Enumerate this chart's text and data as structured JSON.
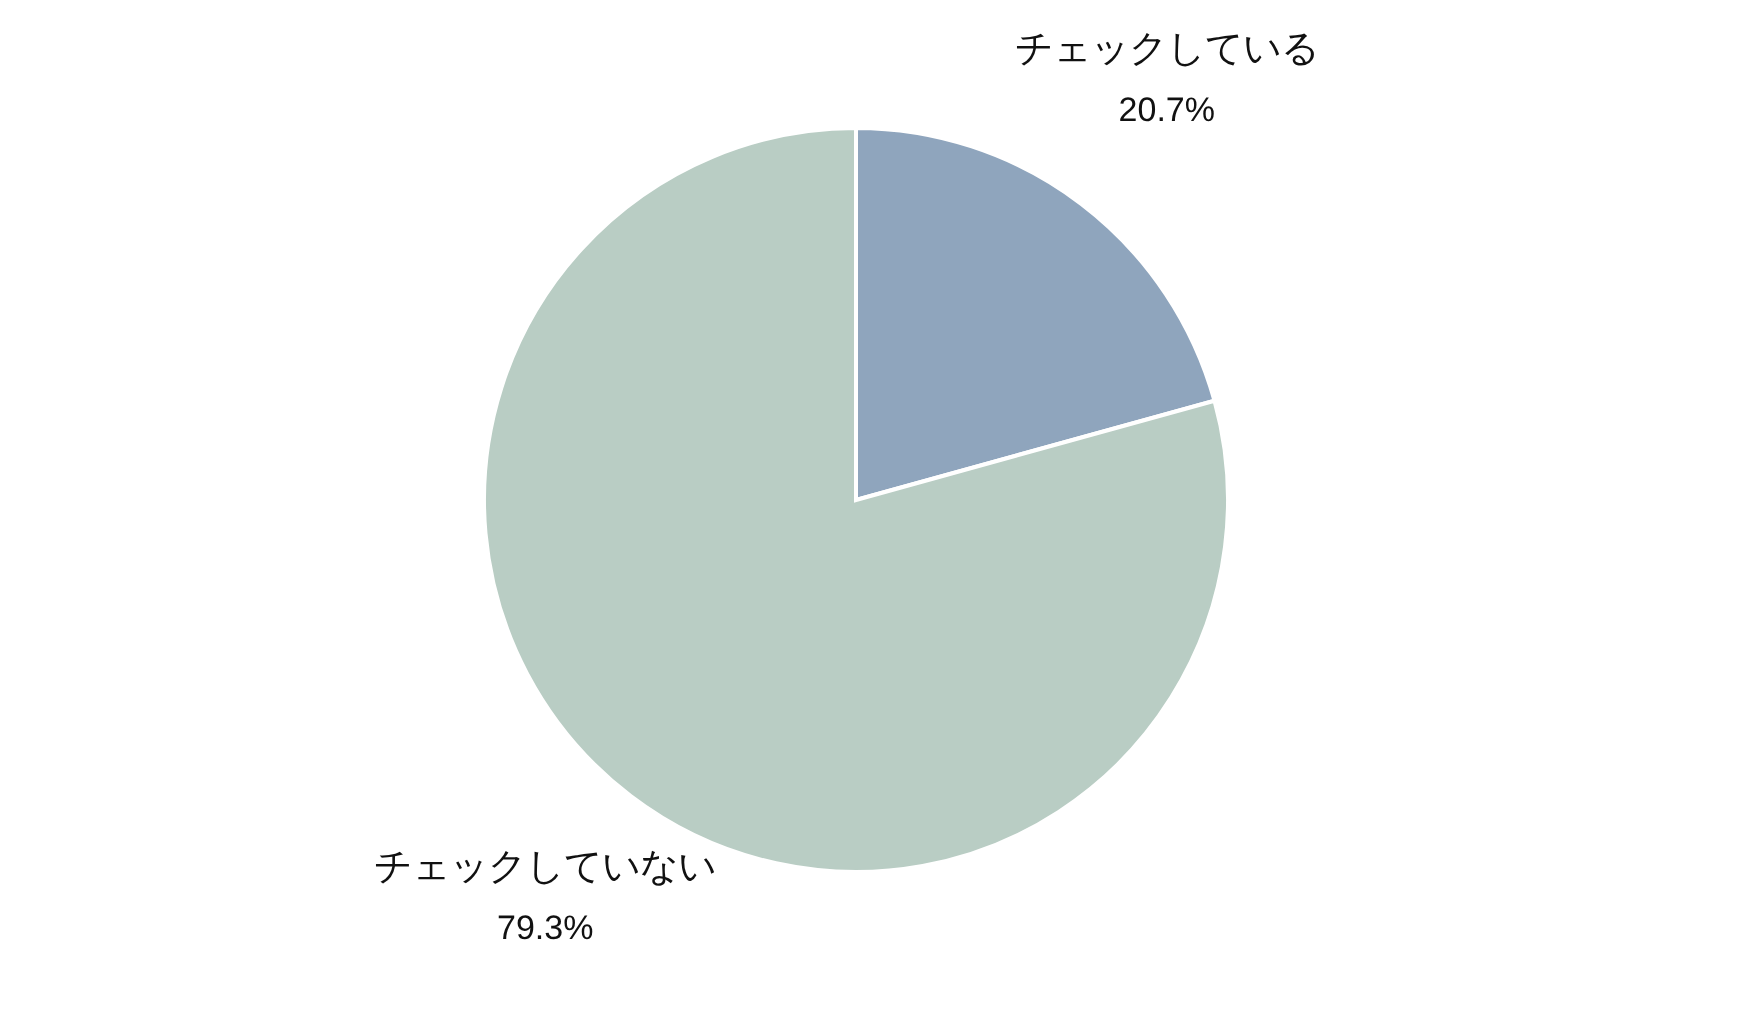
{
  "chart_data": {
    "type": "pie",
    "categories": [
      "チェックしている",
      "チェックしていない"
    ],
    "values": [
      20.7,
      79.3
    ],
    "value_labels": [
      "20.7%",
      "79.3%"
    ],
    "colors": [
      "#8fa5bd",
      "#b9cdc4"
    ],
    "legend": false
  }
}
